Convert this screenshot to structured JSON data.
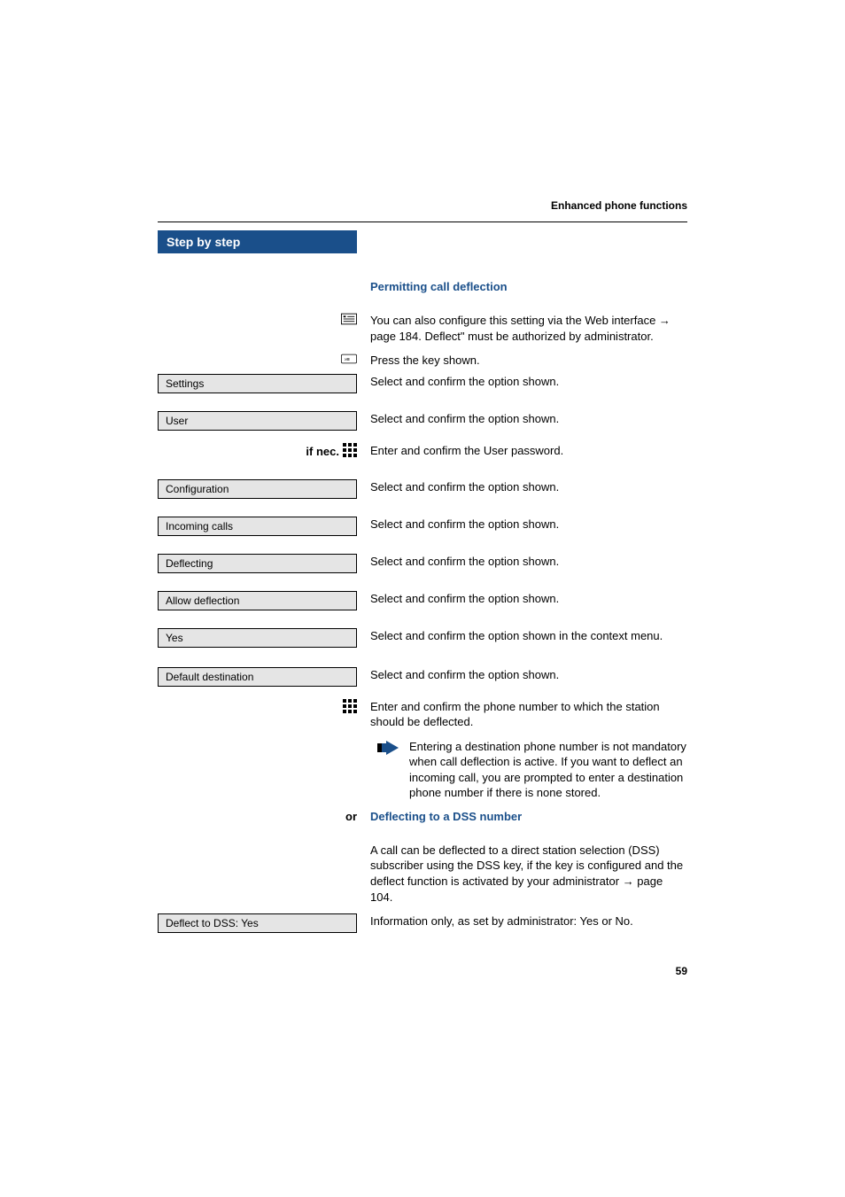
{
  "header": {
    "section_title": "Enhanced phone functions"
  },
  "sidebar_header": "Step by step",
  "page_number": "59",
  "colors": {
    "accent": "#1a4f8a",
    "box_bg": "#e5e5e5",
    "text": "#000000",
    "page_bg": "#ffffff"
  },
  "rows": [
    {
      "left_type": "none",
      "right_type": "subtitle",
      "right": "Permitting call deflection",
      "gap_before": 30
    },
    {
      "left_type": "icon-web",
      "right_type": "text",
      "right": "You can also configure this setting via the Web interface → page 184. Deflect\" must be authorized by administrator.",
      "gap_before": 12
    },
    {
      "left_type": "icon-key",
      "right_type": "text",
      "right": "Press the key shown.",
      "gap_before": 10
    },
    {
      "left_type": "box",
      "left": "Settings",
      "right_type": "text",
      "right": "Select and confirm the option shown.",
      "gap_before": 6
    },
    {
      "left_type": "box",
      "left": "User",
      "right_type": "text",
      "right": "Select and confirm the option shown.",
      "gap_before": 20
    },
    {
      "left_type": "if-nec-keypad",
      "left": "if nec.",
      "right_type": "text",
      "right": "Enter and confirm the User password.",
      "gap_before": 14
    },
    {
      "left_type": "box",
      "left": "Configuration",
      "right_type": "text",
      "right": "Select and confirm the option shown.",
      "gap_before": 22
    },
    {
      "left_type": "box",
      "left": "Incoming calls",
      "right_type": "text",
      "right": "Select and confirm the option shown.",
      "gap_before": 20
    },
    {
      "left_type": "box",
      "left": "Deflecting",
      "right_type": "text",
      "right": "Select and confirm the option shown.",
      "gap_before": 20
    },
    {
      "left_type": "box",
      "left": "Allow deflection",
      "right_type": "text",
      "right": "Select and confirm the option shown.",
      "gap_before": 20
    },
    {
      "left_type": "box",
      "left": "Yes",
      "right_type": "text",
      "right": "Select and confirm the option shown in the context menu.",
      "gap_before": 20
    },
    {
      "left_type": "box",
      "left": "Default destination",
      "right_type": "text",
      "right": "Select and confirm the option shown.",
      "gap_before": 22
    },
    {
      "left_type": "icon-keypad",
      "right_type": "text",
      "right": "Enter and confirm the phone number to which the station should be deflected.",
      "gap_before": 14
    },
    {
      "left_type": "none",
      "right_type": "note",
      "right": "Entering a destination phone number is not mandatory when call deflection is active. If you want to deflect an incoming call, you are prompted to enter a destination phone number if there is none stored.",
      "gap_before": 8
    },
    {
      "left_type": "or",
      "left": "or",
      "right_type": "subtitle",
      "right": "Deflecting to a DSS number",
      "gap_before": 10
    },
    {
      "left_type": "none",
      "right_type": "text",
      "right": "A call can be deflected to a direct station selection (DSS) subscriber using the DSS key, if the key is configured and the deflect function is activated by your administrator → page 104.",
      "gap_before": 12
    },
    {
      "left_type": "box",
      "left": "Deflect to DSS: Yes",
      "right_type": "text",
      "right": "Information only, as set by administrator: Yes or No.",
      "gap_before": 10
    }
  ],
  "icons": {
    "web": "web-interface-icon",
    "key": "key-icon",
    "keypad": "keypad-icon",
    "note": "note-arrow-icon"
  }
}
